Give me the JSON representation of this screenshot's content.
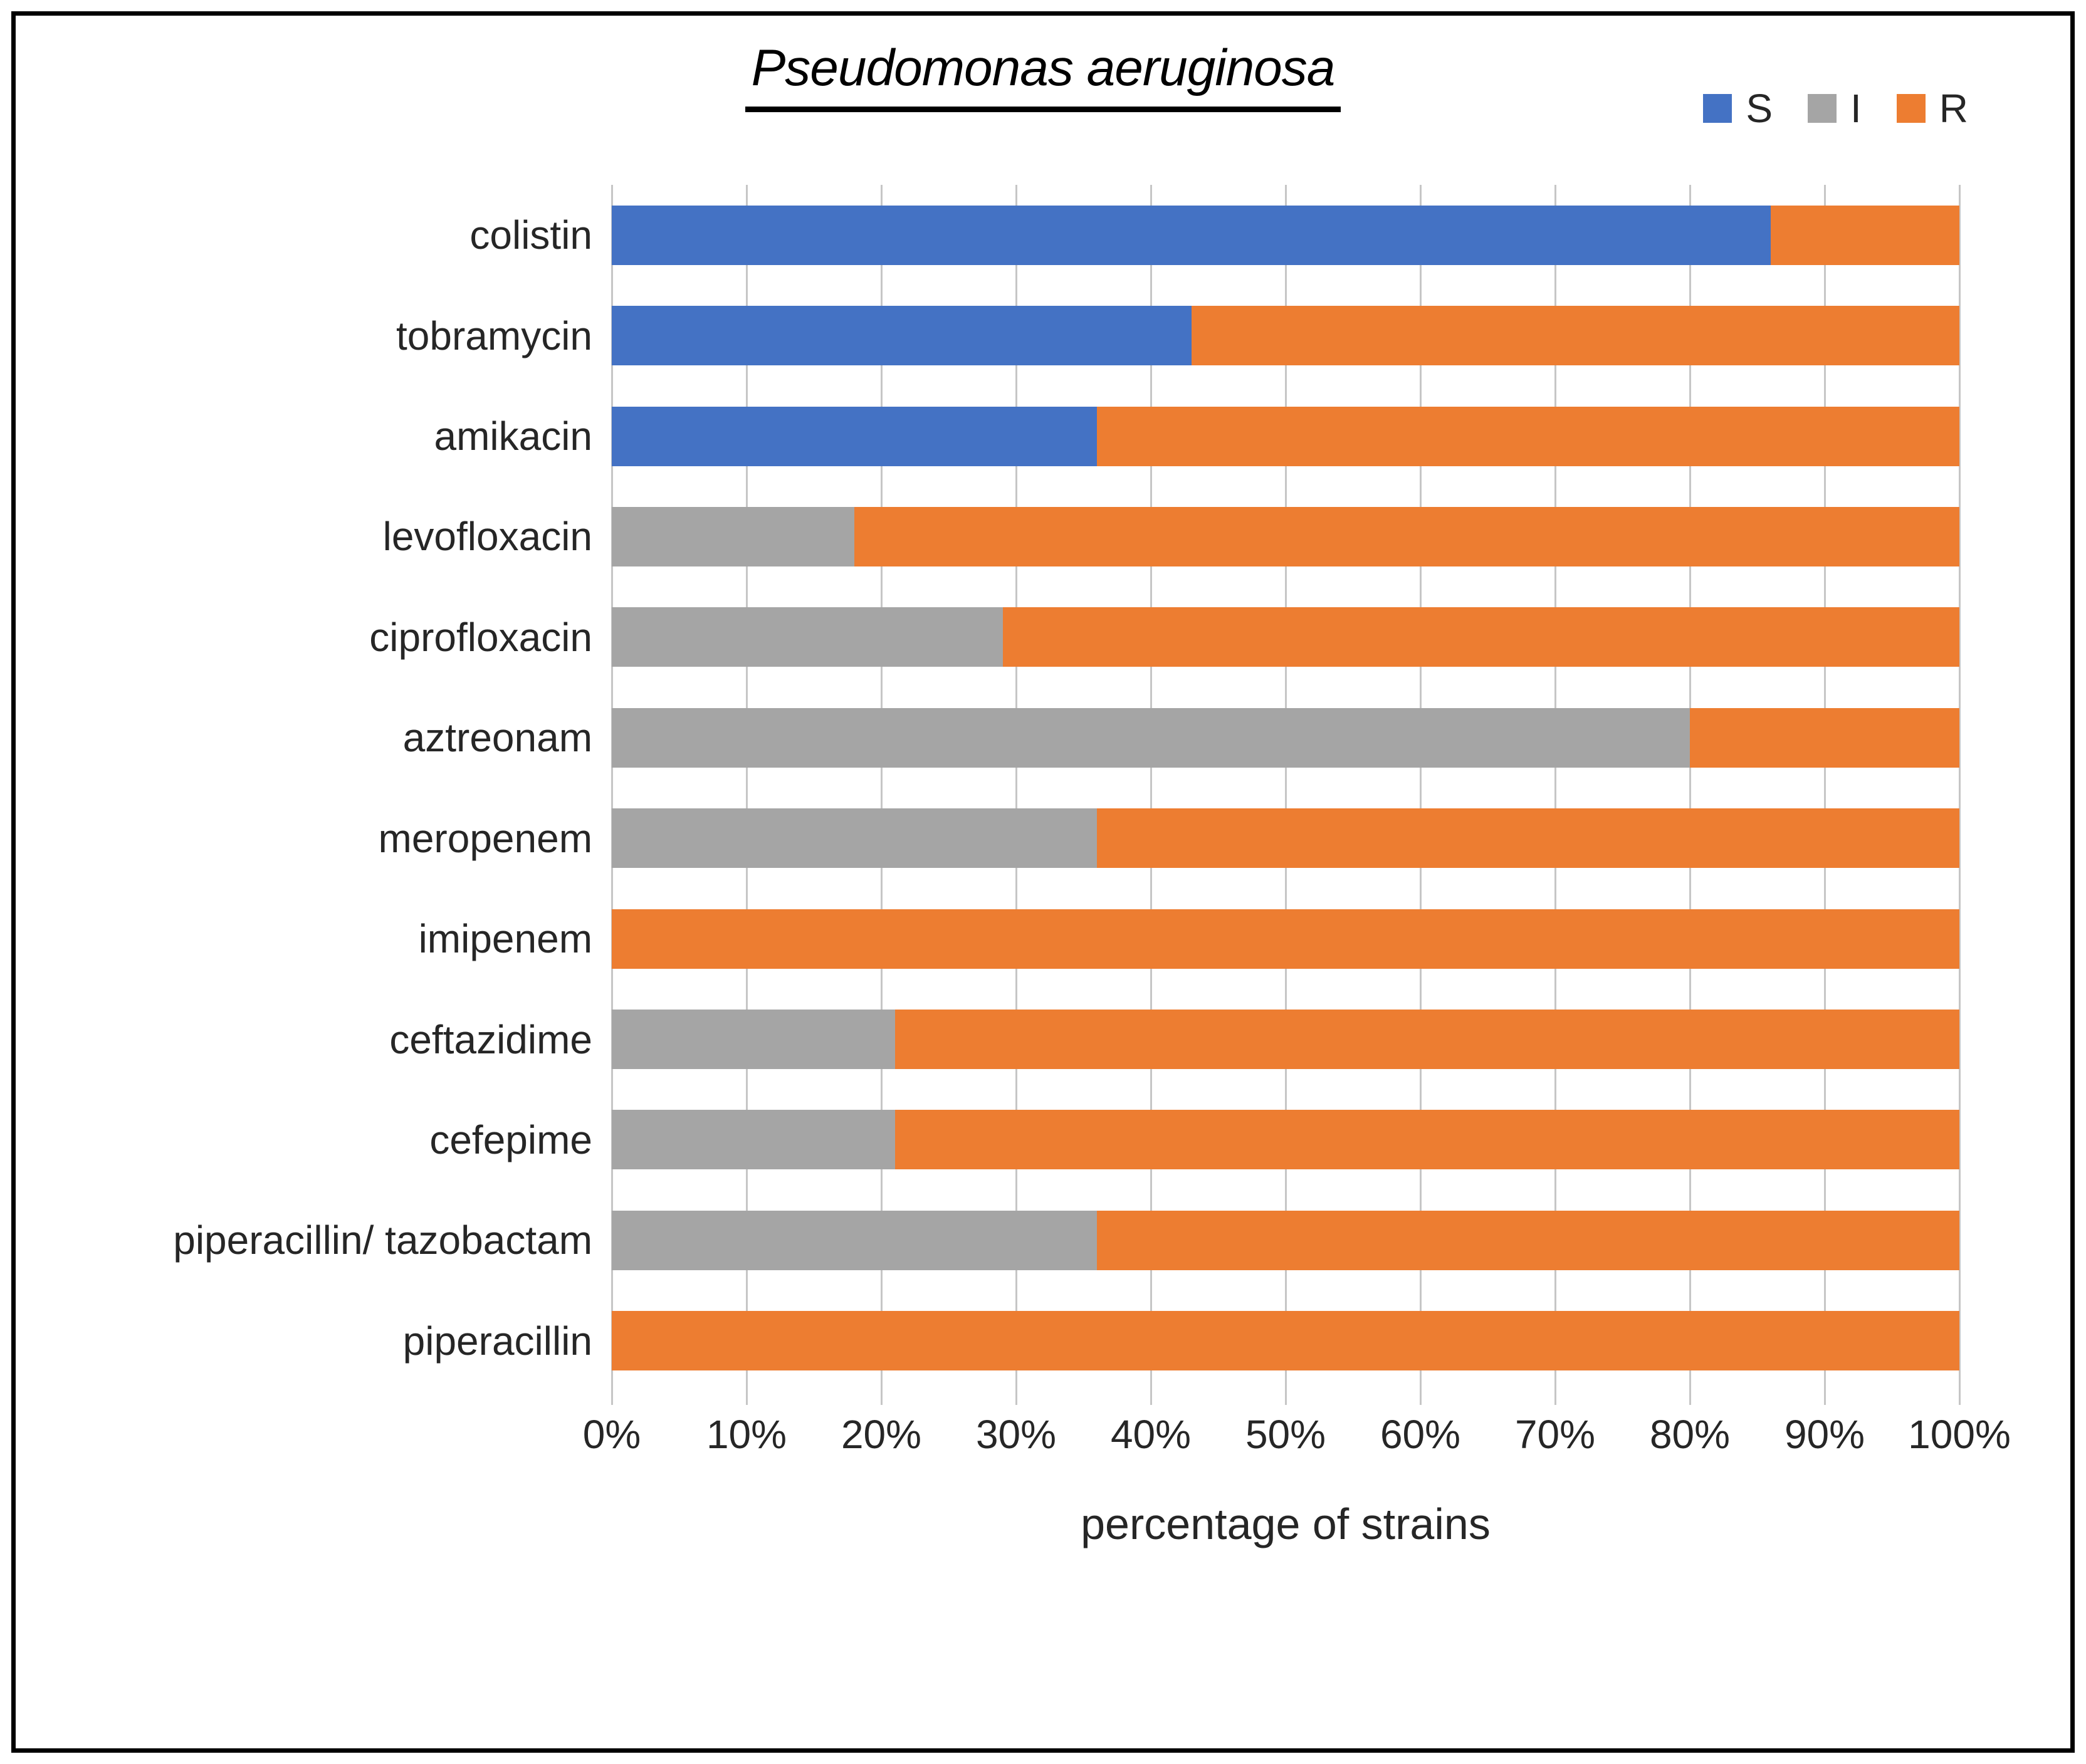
{
  "chart_data": {
    "type": "bar",
    "orientation": "horizontal",
    "stacked": true,
    "title": "Pseudomonas aeruginosa",
    "xlabel": "percentage of strains",
    "ylabel": "",
    "xlim": [
      0,
      100
    ],
    "xticks": [
      "0%",
      "10%",
      "20%",
      "30%",
      "40%",
      "50%",
      "60%",
      "70%",
      "80%",
      "90%",
      "100%"
    ],
    "grid": "vertical",
    "legend": {
      "position": "top-right",
      "entries": [
        "S",
        "I",
        "R"
      ]
    },
    "categories": [
      "colistin",
      "tobramycin",
      "amikacin",
      "levofloxacin",
      "ciprofloxacin",
      "aztreonam",
      "meropenem",
      "imipenem",
      "ceftazidime",
      "cefepime",
      "piperacillin/ tazobactam",
      "piperacillin"
    ],
    "series": [
      {
        "name": "S",
        "color": "#4472C4",
        "values": [
          86,
          43,
          36,
          0,
          0,
          0,
          0,
          0,
          0,
          0,
          0,
          0
        ]
      },
      {
        "name": "I",
        "color": "#A5A5A5",
        "values": [
          0,
          0,
          0,
          18,
          29,
          80,
          36,
          0,
          21,
          21,
          36,
          0
        ]
      },
      {
        "name": "R",
        "color": "#ED7D31",
        "values": [
          14,
          57,
          64,
          82,
          71,
          20,
          64,
          100,
          79,
          79,
          64,
          100
        ]
      }
    ],
    "colors": {
      "S": "#4472C4",
      "I": "#A5A5A5",
      "R": "#ED7D31",
      "gridline": "#C6C6C6",
      "text": "#262626"
    }
  }
}
